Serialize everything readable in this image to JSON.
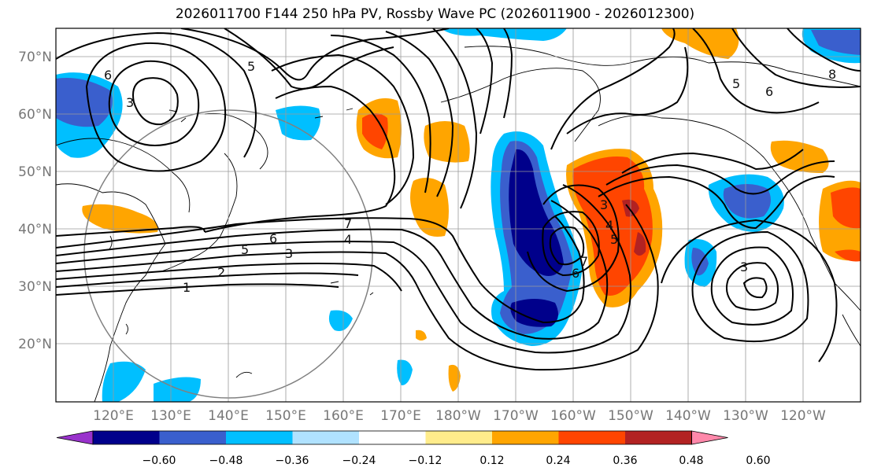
{
  "title": "2026011700 F144 250 hPa PV, Rossby Wave PC (2026011900 - 2026012300)",
  "lat_labels": [
    "70°N",
    "60°N",
    "50°N",
    "40°N",
    "30°N",
    "20°N"
  ],
  "lon_labels": [
    "120°E",
    "130°E",
    "140°E",
    "150°E",
    "160°E",
    "170°E",
    "180°W",
    "170°W",
    "160°W",
    "150°W",
    "140°W",
    "130°W",
    "120°W"
  ],
  "colorbar": {
    "ticks": [
      "−0.60",
      "−0.48",
      "−0.36",
      "−0.24",
      "−0.12",
      "0.12",
      "0.24",
      "0.36",
      "0.48",
      "0.60"
    ],
    "colors": [
      "#9932cc",
      "#00008b",
      "#3a5fcd",
      "#00bfff",
      "#b0e2ff",
      "#ffffff",
      "#ffec8b",
      "#ffa500",
      "#ff4500",
      "#b22222",
      "#ff88aa"
    ]
  },
  "contour_labels": [
    "1",
    "2",
    "3",
    "4",
    "5",
    "6",
    "7",
    "3",
    "4",
    "5",
    "6",
    "7",
    "5",
    "6",
    "5",
    "6",
    "3",
    "3",
    "8"
  ]
}
